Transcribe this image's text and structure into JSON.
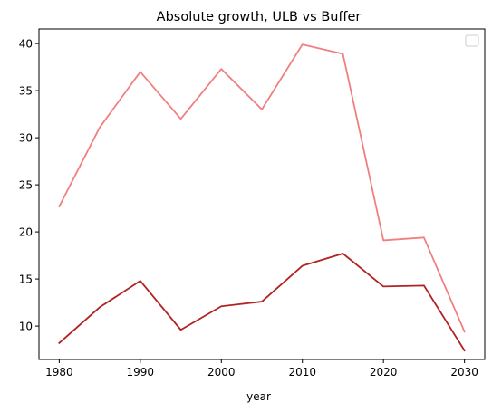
{
  "chart_data": {
    "type": "line",
    "title": "Absolute growth, ULB vs Buffer",
    "xlabel": "year",
    "ylabel": "",
    "x": [
      1980,
      1985,
      1990,
      1995,
      2000,
      2005,
      2010,
      2015,
      2020,
      2025,
      2030
    ],
    "xticks": [
      1980,
      1990,
      2000,
      2010,
      2020,
      2030
    ],
    "yticks": [
      10,
      15,
      20,
      25,
      30,
      35,
      40
    ],
    "xlim": [
      1977.5,
      2032.5
    ],
    "ylim": [
      6.45,
      41.55
    ],
    "grid": false,
    "legend": "top-right",
    "series": [
      {
        "color": "#f08080",
        "values": [
          22.7,
          31.1,
          37.0,
          32.0,
          37.3,
          33.0,
          39.9,
          38.9,
          19.1,
          19.4,
          9.4
        ]
      },
      {
        "color": "#b22222",
        "values": [
          8.2,
          12.0,
          14.8,
          9.6,
          12.1,
          12.6,
          16.4,
          17.7,
          14.2,
          14.3,
          7.4
        ]
      }
    ]
  }
}
